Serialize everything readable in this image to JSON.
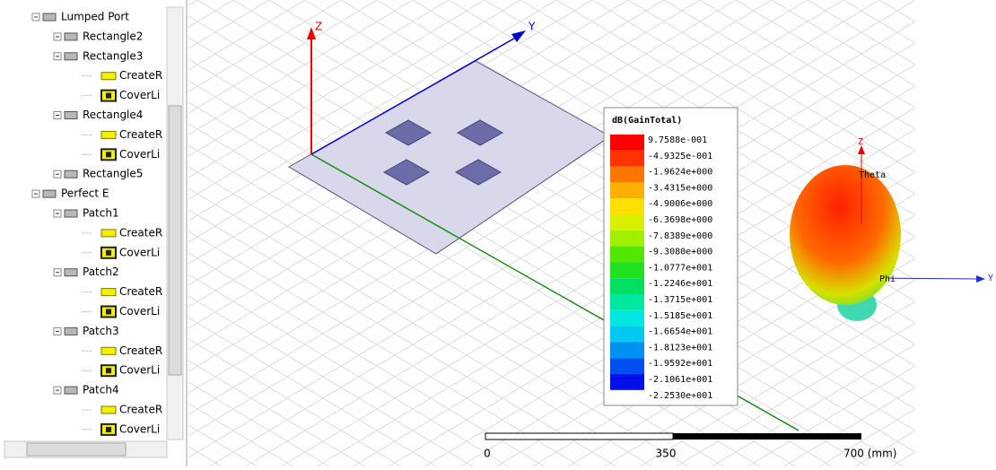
{
  "tree": [
    {
      "label": "Lumped Port",
      "level": 0,
      "icon": "box"
    },
    {
      "label": "Rectangle2",
      "level": 1,
      "icon": "box"
    },
    {
      "label": "Rectangle3",
      "level": 1,
      "icon": "box"
    },
    {
      "label": "CreateR",
      "level": 2,
      "icon": "create"
    },
    {
      "label": "CoverLi",
      "level": 2,
      "icon": "cover"
    },
    {
      "label": "Rectangle4",
      "level": 1,
      "icon": "box"
    },
    {
      "label": "CreateR",
      "level": 2,
      "icon": "create"
    },
    {
      "label": "CoverLi",
      "level": 2,
      "icon": "cover"
    },
    {
      "label": "Rectangle5",
      "level": 1,
      "icon": "box"
    },
    {
      "label": "Perfect E",
      "level": 0,
      "icon": "box"
    },
    {
      "label": "Patch1",
      "level": 1,
      "icon": "box"
    },
    {
      "label": "CreateR",
      "level": 2,
      "icon": "create"
    },
    {
      "label": "CoverLi",
      "level": 2,
      "icon": "cover"
    },
    {
      "label": "Patch2",
      "level": 1,
      "icon": "box"
    },
    {
      "label": "CreateR",
      "level": 2,
      "icon": "create"
    },
    {
      "label": "CoverLi",
      "level": 2,
      "icon": "cover"
    },
    {
      "label": "Patch3",
      "level": 1,
      "icon": "box"
    },
    {
      "label": "CreateR",
      "level": 2,
      "icon": "create"
    },
    {
      "label": "CoverLi",
      "level": 2,
      "icon": "cover"
    },
    {
      "label": "Patch4",
      "level": 1,
      "icon": "box"
    },
    {
      "label": "CreateR",
      "level": 2,
      "icon": "create"
    },
    {
      "label": "CoverLi",
      "level": 2,
      "icon": "cover"
    }
  ],
  "viewport": {
    "z_axis": "Z",
    "y_axis": "Y"
  },
  "legend": {
    "title": "dB(GainTotal)",
    "labels": [
      "9.7588e-001",
      "-4.9325e-001",
      "-1.9624e+000",
      "-3.4315e+000",
      "-4.9006e+000",
      "-6.3698e+000",
      "-7.8389e+000",
      "-9.3080e+000",
      "-1.0777e+001",
      "-1.2246e+001",
      "-1.3715e+001",
      "-1.5185e+001",
      "-1.6654e+001",
      "-1.8123e+001",
      "-1.9592e+001",
      "-2.1061e+001",
      "-2.2530e+001"
    ],
    "colors": [
      "#ff0000",
      "#ff3300",
      "#ff7700",
      "#ffb000",
      "#ffe000",
      "#d8f000",
      "#a0f000",
      "#50e800",
      "#20e020",
      "#00e060",
      "#00e8a0",
      "#00e8e0",
      "#00c8f0",
      "#0090f0",
      "#0050f0",
      "#0010e8"
    ]
  },
  "radiation_plot": {
    "z_axis": "Z",
    "theta": "Theta",
    "phi": "Phi",
    "y_axis": "Y"
  },
  "scale": {
    "labels": [
      "0",
      "350",
      "700 (mm)"
    ]
  }
}
